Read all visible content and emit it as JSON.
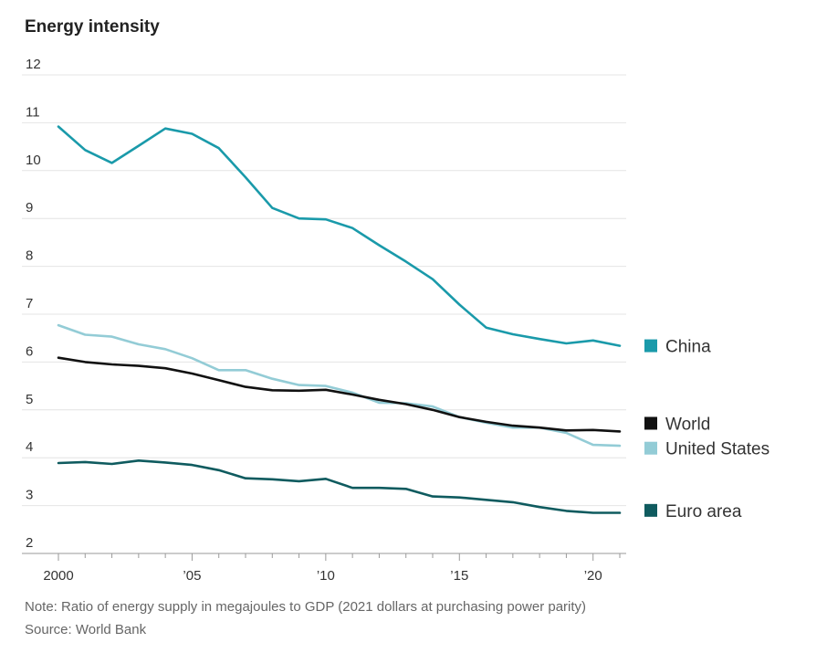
{
  "title": "Energy intensity",
  "note": "Note: Ratio of energy supply in megajoules to GDP (2021 dollars at purchasing power parity)",
  "source": "Source: World Bank",
  "chart_data": {
    "type": "line",
    "title": "Energy intensity",
    "xlabel": "",
    "ylabel": "",
    "xlim": [
      2000,
      2021
    ],
    "ylim": [
      2,
      12
    ],
    "grid": true,
    "legend_position": "right",
    "yticks": [
      2,
      3,
      4,
      5,
      6,
      7,
      8,
      9,
      10,
      11,
      12
    ],
    "ytick_labels": [
      "2",
      "3",
      "4",
      "5",
      "6",
      "7",
      "8",
      "9",
      "10",
      "11",
      "12"
    ],
    "xticks": [
      2000,
      2005,
      2010,
      2015,
      2020
    ],
    "xtick_labels": [
      "2000",
      "’05",
      "’10",
      "’15",
      "’20"
    ],
    "x": [
      2000,
      2001,
      2002,
      2003,
      2004,
      2005,
      2006,
      2007,
      2008,
      2009,
      2010,
      2011,
      2012,
      2013,
      2014,
      2015,
      2016,
      2017,
      2018,
      2019,
      2020,
      2021
    ],
    "series": [
      {
        "name": "China",
        "color": "#1a9aaa",
        "values": [
          10.92,
          10.43,
          10.16,
          10.52,
          10.88,
          10.77,
          10.47,
          9.86,
          9.22,
          9.0,
          8.98,
          8.8,
          8.44,
          8.1,
          7.73,
          7.2,
          6.72,
          6.58,
          6.48,
          6.39,
          6.45,
          6.34
        ]
      },
      {
        "name": "World",
        "color": "#111111",
        "values": [
          6.09,
          6.0,
          5.95,
          5.92,
          5.87,
          5.76,
          5.62,
          5.48,
          5.41,
          5.4,
          5.42,
          5.32,
          5.21,
          5.12,
          5.0,
          4.85,
          4.75,
          4.67,
          4.63,
          4.57,
          4.58,
          4.55
        ]
      },
      {
        "name": "United States",
        "color": "#93ccd6",
        "values": [
          6.77,
          6.57,
          6.53,
          6.37,
          6.27,
          6.08,
          5.83,
          5.83,
          5.65,
          5.52,
          5.5,
          5.36,
          5.15,
          5.14,
          5.07,
          4.85,
          4.73,
          4.63,
          4.63,
          4.52,
          4.27,
          4.25
        ]
      },
      {
        "name": "Euro area",
        "color": "#0f5b5f",
        "values": [
          3.89,
          3.91,
          3.87,
          3.94,
          3.9,
          3.85,
          3.74,
          3.57,
          3.55,
          3.51,
          3.56,
          3.37,
          3.37,
          3.35,
          3.19,
          3.17,
          3.12,
          3.07,
          2.97,
          2.89,
          2.85,
          2.85
        ]
      }
    ],
    "legend": [
      {
        "name": "China",
        "y": 6.34
      },
      {
        "name": "World",
        "y": 4.72
      },
      {
        "name": "United States",
        "y": 4.2
      },
      {
        "name": "Euro area",
        "y": 2.9
      }
    ]
  }
}
